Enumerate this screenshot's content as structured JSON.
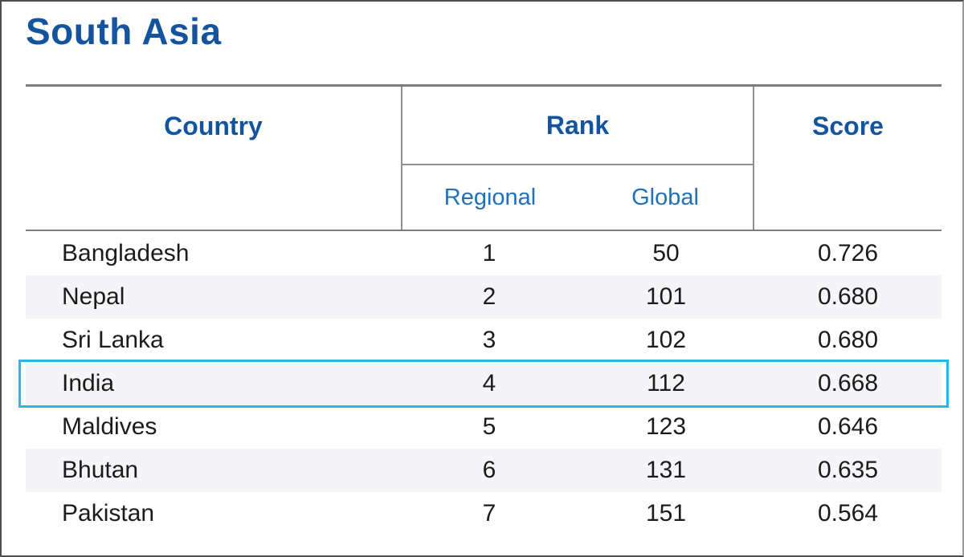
{
  "page": {
    "title": "South Asia"
  },
  "colors": {
    "header_blue": "#14549e",
    "subheader_blue": "#2271b8",
    "highlight_border": "#27b7e8",
    "stripe_bg": "#f5f5f7",
    "rule_gray": "#7d7d7d",
    "text_dark": "#1b1b1d"
  },
  "table": {
    "header": {
      "country": "Country",
      "rank": "Rank",
      "score": "Score",
      "regional": "Regional",
      "global": "Global"
    },
    "rows": [
      {
        "country": "Bangladesh",
        "regional": "1",
        "global": "50",
        "score": "0.726",
        "highlighted": false
      },
      {
        "country": "Nepal",
        "regional": "2",
        "global": "101",
        "score": "0.680",
        "highlighted": false
      },
      {
        "country": "Sri Lanka",
        "regional": "3",
        "global": "102",
        "score": "0.680",
        "highlighted": false
      },
      {
        "country": "India",
        "regional": "4",
        "global": "112",
        "score": "0.668",
        "highlighted": true
      },
      {
        "country": "Maldives",
        "regional": "5",
        "global": "123",
        "score": "0.646",
        "highlighted": false
      },
      {
        "country": "Bhutan",
        "regional": "6",
        "global": "131",
        "score": "0.635",
        "highlighted": false
      },
      {
        "country": "Pakistan",
        "regional": "7",
        "global": "151",
        "score": "0.564",
        "highlighted": false
      }
    ]
  },
  "chart_data": {
    "type": "table",
    "title": "South Asia",
    "column_groups": [
      {
        "label": "Rank",
        "children": [
          "Regional",
          "Global"
        ]
      }
    ],
    "columns": [
      "Country",
      "Regional Rank",
      "Global Rank",
      "Score"
    ],
    "rows": [
      [
        "Bangladesh",
        1,
        50,
        0.726
      ],
      [
        "Nepal",
        2,
        101,
        0.68
      ],
      [
        "Sri Lanka",
        3,
        102,
        0.68
      ],
      [
        "India",
        4,
        112,
        0.668
      ],
      [
        "Maldives",
        5,
        123,
        0.646
      ],
      [
        "Bhutan",
        6,
        131,
        0.635
      ],
      [
        "Pakistan",
        7,
        151,
        0.564
      ]
    ],
    "highlighted_row": "India",
    "layout_hints": {
      "zebra_striping": true,
      "striped_rows": [
        "Nepal",
        "India",
        "Bhutan"
      ],
      "country_alignment": "left",
      "numeric_alignment": "center"
    }
  }
}
